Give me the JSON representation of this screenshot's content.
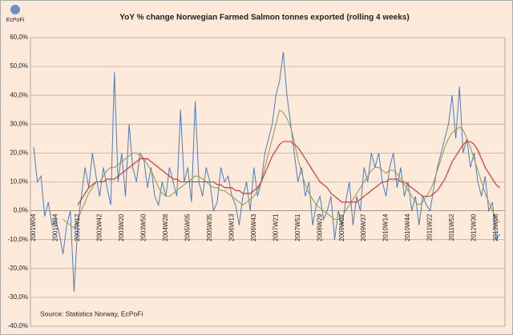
{
  "chart_data": {
    "type": "line",
    "title": "YoY % change Norwegian Farmed Salmon tonnes exported (rolling 4 weeks)",
    "source": "Source: Statistics Norway, EcPoFi",
    "logo": "EcPoFi",
    "categories": [
      "2001W04",
      null,
      null,
      null,
      null,
      null,
      "2001W34",
      null,
      null,
      null,
      null,
      null,
      "2002W12",
      null,
      null,
      null,
      null,
      null,
      "2002W42",
      null,
      null,
      null,
      null,
      null,
      "2003W20",
      null,
      null,
      null,
      null,
      null,
      "2003W50",
      null,
      null,
      null,
      null,
      null,
      "2004W28",
      null,
      null,
      null,
      null,
      null,
      "2005W05",
      null,
      null,
      null,
      null,
      null,
      "2005W35",
      null,
      null,
      null,
      null,
      null,
      "2006W13",
      null,
      null,
      null,
      null,
      null,
      "2006W43",
      null,
      null,
      null,
      null,
      null,
      "2007W21",
      null,
      null,
      null,
      null,
      null,
      "2007W51",
      null,
      null,
      null,
      null,
      null,
      "2008W29",
      null,
      null,
      null,
      null,
      null,
      "2009W07",
      null,
      null,
      null,
      null,
      null,
      "2009W37",
      null,
      null,
      null,
      null,
      null,
      "2010W14",
      null,
      null,
      null,
      null,
      null,
      "2010W44",
      null,
      null,
      null,
      null,
      null,
      "2011W22",
      null,
      null,
      null,
      null,
      null,
      "2011W52",
      null,
      null,
      null,
      null,
      null,
      "2012W30",
      null,
      null,
      null,
      null,
      null,
      "2013W08",
      null
    ],
    "series": [
      {
        "color": "#4a7ebb",
        "values": [
          22,
          10,
          12,
          -2,
          3,
          -5,
          -3,
          -8,
          -15,
          -5,
          0,
          -28,
          -5,
          5,
          15,
          8,
          20,
          12,
          5,
          15,
          8,
          2,
          48,
          10,
          20,
          5,
          30,
          15,
          10,
          20,
          18,
          8,
          15,
          5,
          2,
          10,
          5,
          15,
          10,
          5,
          35,
          10,
          15,
          3,
          38,
          10,
          5,
          15,
          10,
          0,
          3,
          15,
          10,
          12,
          5,
          2,
          -5,
          5,
          10,
          0,
          15,
          5,
          10,
          20,
          25,
          30,
          40,
          45,
          55,
          40,
          30,
          20,
          10,
          15,
          5,
          10,
          -5,
          2,
          5,
          -3,
          0,
          5,
          -10,
          0,
          -5,
          3,
          10,
          -5,
          5,
          0,
          15,
          10,
          20,
          15,
          20,
          10,
          5,
          15,
          20,
          8,
          15,
          5,
          10,
          0,
          5,
          -5,
          5,
          2,
          0,
          8,
          15,
          20,
          25,
          30,
          40,
          25,
          43,
          20,
          25,
          15,
          20,
          10,
          5,
          12,
          0,
          3,
          -10,
          -8
        ]
      },
      {
        "color": "#9c9c52",
        "values": [
          null,
          null,
          null,
          null,
          null,
          null,
          null,
          null,
          -3,
          -4,
          -5,
          -6,
          -3,
          0,
          3,
          6,
          8,
          10,
          10,
          12,
          14,
          15,
          15,
          16,
          17,
          18,
          19,
          20,
          20,
          19,
          18,
          16,
          14,
          11,
          8,
          6,
          5,
          5,
          6,
          7,
          8,
          9,
          10,
          11,
          12,
          12,
          11,
          10,
          9,
          8,
          8,
          7,
          7,
          6,
          5,
          4,
          3,
          2,
          3,
          4,
          5,
          7,
          10,
          15,
          20,
          25,
          30,
          35,
          34,
          32,
          29,
          24,
          18,
          13,
          9,
          6,
          4,
          2,
          1,
          0,
          -1,
          -2,
          -3,
          -3,
          -2,
          0,
          2,
          4,
          6,
          8,
          10,
          12,
          14,
          15,
          15,
          14,
          13,
          14,
          14,
          13,
          11,
          9,
          7,
          5,
          3,
          2,
          3,
          5,
          7,
          10,
          14,
          18,
          22,
          25,
          27,
          28,
          29,
          28,
          25,
          22,
          18,
          14,
          10,
          6,
          3,
          0,
          -3,
          -4
        ]
      },
      {
        "color": "#e02828",
        "values": [
          null,
          null,
          null,
          null,
          null,
          null,
          null,
          null,
          null,
          null,
          null,
          null,
          2,
          4,
          6,
          8,
          9,
          10,
          10,
          10,
          11,
          11,
          11,
          12,
          13,
          14,
          15,
          16,
          17,
          18,
          18,
          18,
          17,
          16,
          15,
          14,
          13,
          12,
          11,
          11,
          10,
          10,
          10,
          10,
          10,
          10,
          10,
          10,
          10,
          10,
          9,
          9,
          8,
          8,
          8,
          7,
          7,
          6,
          6,
          6,
          7,
          8,
          10,
          13,
          16,
          19,
          21,
          23,
          24,
          24,
          24,
          23,
          22,
          20,
          18,
          16,
          14,
          12,
          10,
          9,
          8,
          6,
          5,
          4,
          3,
          3,
          3,
          3,
          3,
          4,
          5,
          6,
          7,
          8,
          9,
          10,
          10,
          11,
          11,
          11,
          10,
          10,
          9,
          8,
          7,
          6,
          5,
          5,
          5,
          6,
          7,
          9,
          11,
          14,
          17,
          19,
          21,
          23,
          24,
          24,
          23,
          21,
          18,
          15,
          13,
          11,
          9,
          8
        ]
      }
    ],
    "ylim": [
      -40,
      60
    ],
    "yticks": [
      {
        "value": -40,
        "label": "-40,0%"
      },
      {
        "value": -30,
        "label": "-30,0%"
      },
      {
        "value": -20,
        "label": "-20,0%"
      },
      {
        "value": -10,
        "label": "-10,0%"
      },
      {
        "value": 0,
        "label": "0,0%"
      },
      {
        "value": 10,
        "label": "10,0%"
      },
      {
        "value": 20,
        "label": "20,0%"
      },
      {
        "value": 30,
        "label": "30,0%"
      },
      {
        "value": 40,
        "label": "40,0%"
      },
      {
        "value": 50,
        "label": "50,0%"
      },
      {
        "value": 60,
        "label": "60,0%"
      }
    ],
    "grid": true
  }
}
